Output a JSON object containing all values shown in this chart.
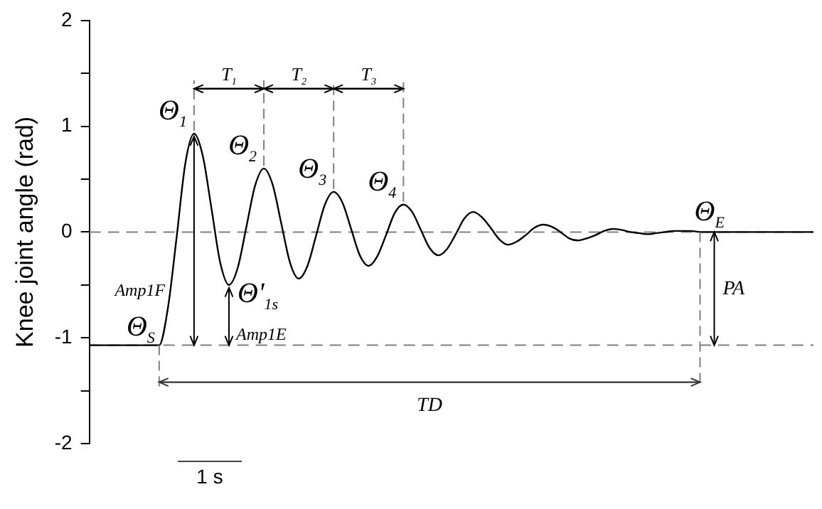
{
  "chart_data": {
    "type": "line",
    "ylabel": "Knee joint angle (rad)",
    "categories": [
      null,
      null,
      null,
      null,
      null,
      null,
      null,
      null,
      null,
      null,
      null,
      null,
      null,
      null,
      null,
      null,
      null,
      null,
      null,
      null,
      null,
      null,
      null,
      null,
      null,
      null,
      null,
      null,
      null,
      null,
      null,
      null,
      null,
      null,
      null,
      null,
      null,
      null,
      null,
      null,
      null,
      null,
      null,
      null,
      null,
      null,
      null,
      null,
      null,
      null,
      null,
      null,
      null,
      null,
      null,
      null,
      null,
      null,
      null,
      null,
      null,
      null,
      null,
      null,
      null,
      null,
      null,
      null,
      null,
      null,
      null,
      null,
      null,
      null,
      null,
      null,
      null,
      null,
      null,
      null,
      null,
      null,
      null,
      null
    ],
    "series": [
      {
        "color": "#000000",
        "values": [
          -1.07,
          -1.07,
          -1.07,
          -1.07,
          -1.07,
          -1.07,
          -1.07,
          -1.07,
          -1.07,
          -0.72,
          -0.05,
          0.65,
          0.93,
          0.72,
          0.22,
          -0.29,
          -0.5,
          -0.34,
          0.05,
          0.44,
          0.6,
          0.45,
          0.08,
          -0.29,
          -0.44,
          -0.32,
          -0.03,
          0.26,
          0.38,
          0.28,
          0.03,
          -0.22,
          -0.32,
          -0.23,
          -0.03,
          0.18,
          0.26,
          0.19,
          0.02,
          -0.15,
          -0.22,
          -0.16,
          -0.02,
          0.13,
          0.19,
          0.14,
          0.04,
          -0.07,
          -0.12,
          -0.09,
          -0.03,
          0.04,
          0.07,
          0.05,
          0,
          -0.06,
          -0.08,
          -0.06,
          -0.03,
          0.01,
          0.03,
          0.02,
          0,
          -0.01,
          -0.02,
          -0.01,
          0,
          0.01,
          0.01,
          0.01,
          0,
          0,
          0,
          0,
          0,
          0,
          0,
          0,
          0,
          0,
          0,
          0,
          0,
          0
        ]
      }
    ],
    "ylim": [
      -2,
      2
    ],
    "yticks": [
      -2,
      {
        "value": -1.5,
        "label": null
      },
      -1,
      {
        "value": -0.5,
        "label": null
      },
      0,
      {
        "value": 0.5,
        "label": null
      },
      1,
      {
        "value": 1.5,
        "label": null
      },
      2
    ],
    "grid": false,
    "legend": false,
    "marker": "none",
    "line_style": "solid",
    "tick_labels": "y",
    "ref_lines": [
      {
        "axis": "y",
        "value": 0,
        "color": "#808080",
        "line_style": "dashed"
      },
      {
        "axis": "y",
        "value": -1.07,
        "color": "#808080",
        "line_style": "dashed"
      }
    ],
    "annotations": [
      "Θ$_{S}$",
      "Θ$_{1}$",
      "Θ$_{2}$",
      "Θ$_{3}$",
      "Θ$_{4}$",
      "Θ'$_{1s}$",
      "Θ$_{E}$",
      "T$_{1}$",
      "T$_{2}$",
      "T$_{3}$",
      "Amp1F",
      "Amp1E",
      "PA",
      "TD",
      "1 s"
    ]
  }
}
